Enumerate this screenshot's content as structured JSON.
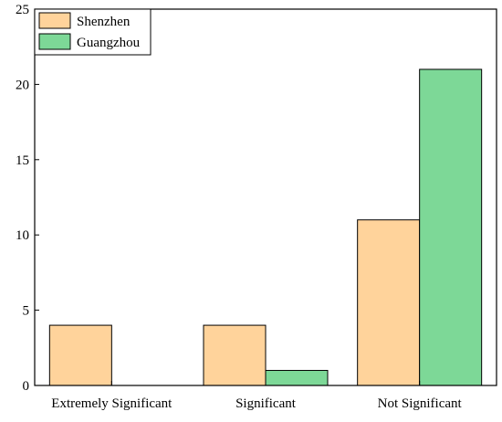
{
  "chart_data": {
    "type": "bar",
    "categories": [
      "Extremely Significant",
      "Significant",
      "Not Significant"
    ],
    "series": [
      {
        "name": "Shenzhen",
        "values": [
          4,
          4,
          11
        ],
        "color": "#FFD39B"
      },
      {
        "name": "Guangzhou",
        "values": [
          0,
          1,
          21
        ],
        "color": "#7DD897"
      }
    ],
    "ylim": [
      0,
      25
    ],
    "yticks": [
      0,
      5,
      10,
      15,
      20,
      25
    ],
    "xlabel": "",
    "ylabel": "",
    "grid": false,
    "legend_position": "top-left"
  }
}
